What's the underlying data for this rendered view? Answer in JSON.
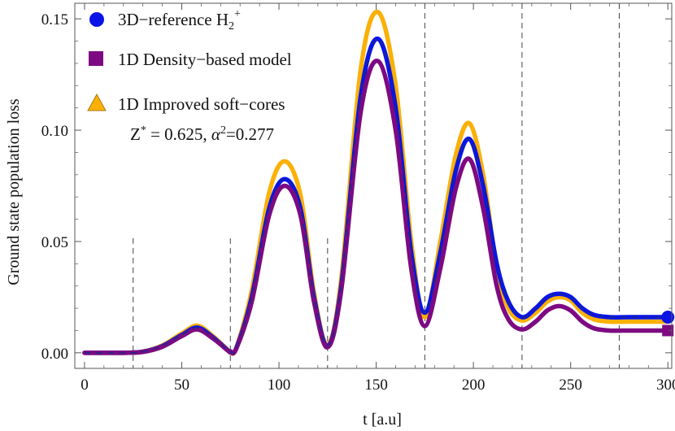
{
  "chart_data": {
    "type": "line",
    "xlabel": "t  [a.u]",
    "ylabel": "Ground  state  population   loss",
    "xlim": [
      -5,
      302
    ],
    "ylim": [
      -0.007,
      0.157
    ],
    "xticks": [
      0,
      50,
      100,
      150,
      200,
      250,
      300
    ],
    "xtick_labels": [
      "0",
      "50",
      "100",
      "150",
      "200",
      "250",
      "300"
    ],
    "yticks": [
      0.0,
      0.05,
      0.1,
      0.15
    ],
    "ytick_labels": [
      "0.00",
      "0.05",
      "0.10",
      "0.15"
    ],
    "vlines": [
      25,
      75,
      125,
      175,
      225,
      275
    ],
    "legend": {
      "placement": "top-left",
      "entries": [
        {
          "label": "3D−reference H",
          "sub": "2",
          "sup": "+",
          "marker": "circle"
        },
        {
          "label": "1D Density−based model",
          "marker": "square"
        },
        {
          "label": "1D Improved soft−cores",
          "marker": "triangle"
        }
      ],
      "annotation": {
        "z_label": "Z",
        "z_sup": "*",
        "z_value": " = 0.625, ",
        "alpha_label": "α",
        "alpha_sup": "2",
        "alpha_value": "=0.277"
      }
    },
    "series": [
      {
        "name": "3D-reference H2+",
        "color": "#0a14e6",
        "marker": "circle",
        "x": [
          0,
          20,
          30,
          40,
          50,
          58,
          66,
          74,
          75,
          78,
          86,
          95,
          103,
          111,
          118,
          125,
          132,
          142,
          151,
          160,
          168,
          175,
          183,
          191,
          198,
          205,
          212,
          218,
          225,
          232,
          238,
          244,
          250,
          256,
          262,
          270,
          280,
          290,
          300
        ],
        "y": [
          0.0,
          0.0,
          0.0005,
          0.003,
          0.008,
          0.0113,
          0.007,
          0.0009,
          0.0006,
          0.002,
          0.025,
          0.065,
          0.078,
          0.065,
          0.025,
          0.003,
          0.03,
          0.115,
          0.141,
          0.11,
          0.045,
          0.018,
          0.045,
          0.082,
          0.096,
          0.075,
          0.04,
          0.023,
          0.016,
          0.02,
          0.025,
          0.0265,
          0.025,
          0.02,
          0.017,
          0.016,
          0.016,
          0.016,
          0.016
        ]
      },
      {
        "name": "1D Density-based model",
        "color": "#7d0a82",
        "marker": "square",
        "x": [
          0,
          20,
          30,
          40,
          50,
          58,
          66,
          74,
          75,
          78,
          86,
          95,
          103,
          111,
          118,
          125,
          132,
          142,
          151,
          160,
          168,
          175,
          183,
          191,
          198,
          205,
          212,
          218,
          225,
          232,
          238,
          244,
          250,
          256,
          262,
          270,
          280,
          290,
          300
        ],
        "y": [
          0.0,
          0.0,
          0.0004,
          0.0027,
          0.0075,
          0.0105,
          0.0065,
          0.0008,
          0.0005,
          0.0018,
          0.023,
          0.062,
          0.075,
          0.062,
          0.023,
          0.0025,
          0.028,
          0.108,
          0.131,
          0.1,
          0.038,
          0.012,
          0.038,
          0.074,
          0.087,
          0.065,
          0.03,
          0.015,
          0.0105,
          0.014,
          0.019,
          0.021,
          0.019,
          0.014,
          0.011,
          0.01,
          0.01,
          0.01,
          0.01
        ]
      },
      {
        "name": "1D Improved soft-cores",
        "color": "#fbb006",
        "marker": "triangle",
        "x": [
          0,
          20,
          30,
          40,
          50,
          58,
          66,
          74,
          75,
          78,
          86,
          95,
          103,
          111,
          118,
          125,
          132,
          142,
          151,
          160,
          168,
          175,
          183,
          191,
          198,
          205,
          212,
          218,
          225,
          232,
          238,
          244,
          250,
          256,
          262,
          270,
          280,
          290,
          300
        ],
        "y": [
          0.0,
          0.0,
          0.0005,
          0.0033,
          0.0087,
          0.0122,
          0.0075,
          0.0009,
          0.0006,
          0.002,
          0.028,
          0.072,
          0.086,
          0.071,
          0.027,
          0.0035,
          0.033,
          0.127,
          0.153,
          0.12,
          0.05,
          0.016,
          0.05,
          0.089,
          0.103,
          0.08,
          0.038,
          0.02,
          0.0145,
          0.018,
          0.023,
          0.025,
          0.0235,
          0.018,
          0.015,
          0.014,
          0.014,
          0.014,
          0.014
        ]
      }
    ]
  }
}
